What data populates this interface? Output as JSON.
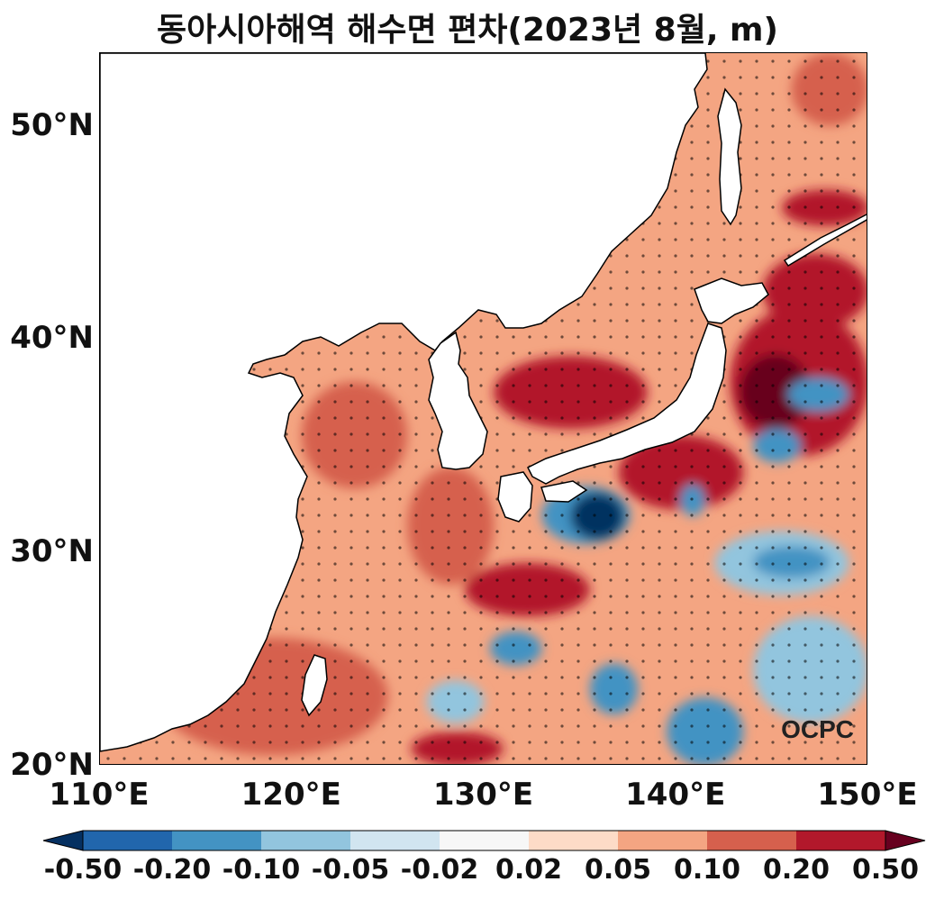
{
  "title": "동아시아해역 해수면 편차(2023년 8월, m)",
  "watermark": "OCPC",
  "lat_ticks": [
    {
      "label": "50°N",
      "value": 50
    },
    {
      "label": "40°N",
      "value": 40
    },
    {
      "label": "30°N",
      "value": 30
    },
    {
      "label": "20°N",
      "value": 20
    }
  ],
  "lon_ticks": [
    {
      "label": "110°E",
      "value": 110
    },
    {
      "label": "120°E",
      "value": 120
    },
    {
      "label": "130°E",
      "value": 130
    },
    {
      "label": "140°E",
      "value": 140
    },
    {
      "label": "150°E",
      "value": 150
    }
  ],
  "extent": {
    "lon": [
      110,
      150
    ],
    "lat": [
      20,
      53.4
    ]
  },
  "colorbar": {
    "labels": [
      "-0.50",
      "-0.20",
      "-0.10",
      "-0.05",
      "-0.02",
      "0.02",
      "0.05",
      "0.10",
      "0.20",
      "0.50"
    ],
    "colors": [
      "#2166ac",
      "#4393c3",
      "#92c5de",
      "#d1e5f0",
      "#f7f7f7",
      "#fddbc7",
      "#f4a582",
      "#d6604d",
      "#b2182b"
    ],
    "under_color": "#053061",
    "over_color": "#67001f"
  },
  "land_color": "#ffffff",
  "anomaly_regions": [
    {
      "level": 0.2,
      "lon": [
        142.8,
        150
      ],
      "lat": [
        34.5,
        41.5
      ]
    },
    {
      "level": 0.5,
      "lon": [
        143.3,
        147
      ],
      "lat": [
        35.8,
        39.3
      ]
    },
    {
      "level": -0.2,
      "lon": [
        145.8,
        149
      ],
      "lat": [
        36.6,
        38.2
      ]
    },
    {
      "level": -0.2,
      "lon": [
        144,
        146.5
      ],
      "lat": [
        34.2,
        35.8
      ]
    },
    {
      "level": 0.2,
      "lon": [
        137,
        143.5
      ],
      "lat": [
        32,
        35.5
      ]
    },
    {
      "level": -0.2,
      "lon": [
        133,
        137.6
      ],
      "lat": [
        30.4,
        33.1
      ]
    },
    {
      "level": -0.5,
      "lon": [
        134.5,
        137.3
      ],
      "lat": [
        30.6,
        32.8
      ]
    },
    {
      "level": 0.2,
      "lon": [
        129,
        135.5
      ],
      "lat": [
        27,
        29.5
      ]
    },
    {
      "level": -0.2,
      "lon": [
        140.2,
        141.5
      ],
      "lat": [
        31.7,
        33.2
      ]
    },
    {
      "level": -0.1,
      "lon": [
        142,
        149
      ],
      "lat": [
        28,
        31
      ]
    },
    {
      "level": -0.2,
      "lon": [
        144,
        148
      ],
      "lat": [
        28.8,
        30.3
      ]
    },
    {
      "level": -0.2,
      "lon": [
        130.3,
        133
      ],
      "lat": [
        24.7,
        26.3
      ]
    },
    {
      "level": -0.2,
      "lon": [
        135.5,
        138
      ],
      "lat": [
        22.4,
        24.8
      ]
    },
    {
      "level": -0.2,
      "lon": [
        139.5,
        143.5
      ],
      "lat": [
        20,
        23.2
      ]
    },
    {
      "level": -0.1,
      "lon": [
        144,
        150
      ],
      "lat": [
        22,
        27
      ]
    },
    {
      "level": -0.1,
      "lon": [
        127,
        130
      ],
      "lat": [
        22,
        24
      ]
    },
    {
      "level": 0.2,
      "lon": [
        126.2,
        131
      ],
      "lat": [
        20,
        21.6
      ]
    },
    {
      "level": 0.2,
      "lon": [
        144.5,
        150
      ],
      "lat": [
        40.5,
        44
      ]
    },
    {
      "level": 0.2,
      "lon": [
        145.5,
        150
      ],
      "lat": [
        45.3,
        47
      ]
    },
    {
      "level": 0.1,
      "lon": [
        146,
        150
      ],
      "lat": [
        50,
        53.4
      ]
    },
    {
      "level": 0.2,
      "lon": [
        130.5,
        138.5
      ],
      "lat": [
        35.8,
        39.2
      ]
    },
    {
      "level": 0.1,
      "lon": [
        120.5,
        126
      ],
      "lat": [
        33,
        38
      ]
    },
    {
      "level": 0.1,
      "lon": [
        113,
        125
      ],
      "lat": [
        20.5,
        26
      ]
    },
    {
      "level": 0.1,
      "lon": [
        126,
        130.5
      ],
      "lat": [
        28.5,
        34
      ]
    }
  ]
}
